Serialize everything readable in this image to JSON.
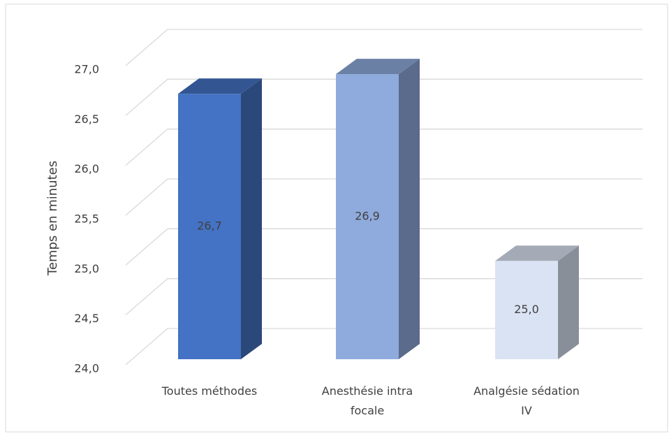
{
  "chart_data": {
    "type": "bar3d",
    "y_label": "Temps en minutes",
    "categories": [
      "Toutes méthodes",
      "Anesthésie intra focale",
      "Analgésie sédation IV"
    ],
    "values": [
      26.7,
      26.9,
      25.0
    ],
    "value_labels": [
      "26,7",
      "26,9",
      "25,0"
    ],
    "colors": [
      "#4472c4",
      "#8faadc",
      "#dae3f3"
    ],
    "ylim": [
      24,
      27
    ],
    "yticks": [
      {
        "value": 24,
        "label": "24,0"
      },
      {
        "value": 24.5,
        "label": "24,5"
      },
      {
        "value": 25,
        "label": "25,0"
      },
      {
        "value": 25.5,
        "label": "25,5"
      },
      {
        "value": 26,
        "label": "26,0"
      },
      {
        "value": 26.5,
        "label": "26,5"
      },
      {
        "value": 27,
        "label": "27,0"
      }
    ],
    "grid": true
  }
}
